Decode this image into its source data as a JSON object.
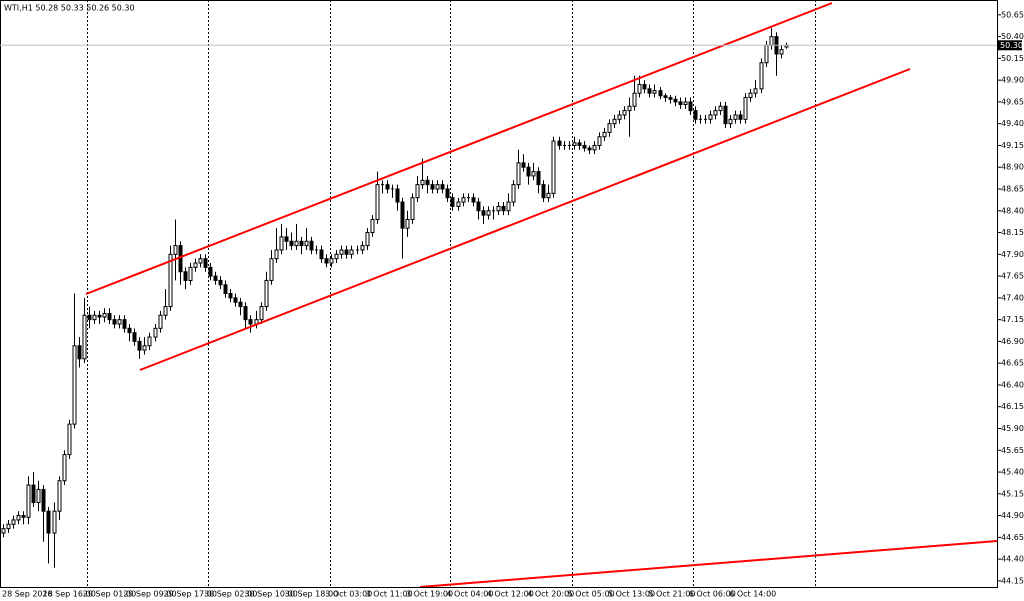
{
  "chart_data": {
    "type": "candlestick",
    "title": "WTI,H1  50.28 50.33 50.26 50.30",
    "categories": [
      "28 Sep 2016",
      null,
      null,
      null,
      null,
      null,
      null,
      null,
      "28 Sep 16:00",
      null,
      null,
      null,
      null,
      null,
      null,
      null,
      "29 Sep 01:00",
      null,
      null,
      null,
      null,
      null,
      null,
      null,
      "29 Sep 09:00",
      null,
      null,
      null,
      null,
      null,
      null,
      null,
      "29 Sep 17:00",
      null,
      null,
      null,
      null,
      null,
      null,
      null,
      "30 Sep 02:00",
      null,
      null,
      null,
      null,
      null,
      null,
      null,
      "30 Sep 10:00",
      null,
      null,
      null,
      null,
      null,
      null,
      null,
      "30 Sep 18:00",
      null,
      null,
      null,
      null,
      null,
      null,
      null,
      "3 Oct 03:00",
      null,
      null,
      null,
      null,
      null,
      null,
      null,
      "3 Oct 11:00",
      null,
      null,
      null,
      null,
      null,
      null,
      null,
      "3 Oct 19:00",
      null,
      null,
      null,
      null,
      null,
      null,
      null,
      "4 Oct 04:00",
      null,
      null,
      null,
      null,
      null,
      null,
      null,
      "4 Oct 12:00",
      null,
      null,
      null,
      null,
      null,
      null,
      null,
      "4 Oct 20:00",
      null,
      null,
      null,
      null,
      null,
      null,
      null,
      "5 Oct 05:00",
      null,
      null,
      null,
      null,
      null,
      null,
      null,
      "5 Oct 13:00",
      null,
      null,
      null,
      null,
      null,
      null,
      null,
      "5 Oct 21:00",
      null,
      null,
      null,
      null,
      null,
      null,
      null,
      "6 Oct 06:00",
      null,
      null,
      null,
      null,
      null,
      null,
      null,
      "6 Oct 14:00",
      null,
      null,
      null,
      null,
      null,
      null,
      null,
      null,
      null,
      null,
      null
    ],
    "open": [
      44.7,
      44.75,
      44.8,
      44.85,
      44.9,
      44.88,
      45.25,
      45.05,
      45.2,
      44.95,
      44.7,
      44.95,
      45.3,
      45.6,
      45.95,
      46.85,
      46.7,
      47.2,
      47.15,
      47.2,
      47.18,
      47.22,
      47.15,
      47.1,
      47.15,
      47.05,
      47.0,
      46.9,
      46.8,
      46.85,
      46.95,
      47.05,
      47.2,
      47.3,
      47.9,
      48.0,
      47.7,
      47.6,
      47.75,
      47.8,
      47.85,
      47.75,
      47.65,
      47.6,
      47.55,
      47.45,
      47.4,
      47.35,
      47.3,
      47.15,
      47.1,
      47.15,
      47.3,
      47.6,
      47.85,
      47.95,
      48.1,
      48.05,
      48.0,
      48.05,
      48.0,
      48.05,
      47.95,
      47.95,
      47.85,
      47.8,
      47.85,
      47.9,
      47.95,
      47.9,
      47.95,
      47.95,
      48.0,
      48.15,
      48.3,
      48.7,
      48.7,
      48.65,
      48.65,
      48.5,
      48.2,
      48.3,
      48.55,
      48.7,
      48.75,
      48.7,
      48.65,
      48.7,
      48.65,
      48.55,
      48.45,
      48.5,
      48.55,
      48.55,
      48.5,
      48.4,
      48.35,
      48.4,
      48.4,
      48.45,
      48.4,
      48.5,
      48.7,
      48.95,
      48.9,
      48.8,
      48.85,
      48.7,
      48.55,
      48.6,
      49.2,
      49.15,
      49.15,
      49.15,
      49.18,
      49.15,
      49.12,
      49.1,
      49.15,
      49.25,
      49.3,
      49.4,
      49.45,
      49.5,
      49.55,
      49.6,
      49.75,
      49.85,
      49.8,
      49.75,
      49.78,
      49.72,
      49.7,
      49.68,
      49.65,
      49.62,
      49.65,
      49.55,
      49.45,
      49.45,
      49.45,
      49.5,
      49.55,
      49.6,
      49.4,
      49.45,
      49.5,
      49.45,
      49.7,
      49.75,
      49.8,
      50.1,
      50.3,
      50.4,
      50.2,
      50.28
    ],
    "high": [
      44.8,
      44.85,
      44.9,
      44.95,
      44.95,
      45.35,
      45.4,
      45.3,
      45.25,
      45.0,
      45.05,
      45.35,
      45.65,
      46.0,
      47.45,
      46.95,
      47.4,
      47.3,
      47.25,
      47.25,
      47.28,
      47.28,
      47.2,
      47.2,
      47.2,
      47.1,
      47.05,
      46.95,
      46.95,
      47.0,
      47.1,
      47.25,
      47.5,
      48.0,
      48.3,
      48.05,
      47.75,
      47.8,
      47.85,
      47.9,
      47.9,
      47.8,
      47.7,
      47.65,
      47.6,
      47.5,
      47.45,
      47.4,
      47.35,
      47.2,
      47.25,
      47.35,
      47.7,
      47.95,
      48.2,
      48.25,
      48.2,
      48.15,
      48.25,
      48.1,
      48.2,
      48.1,
      48.0,
      48.0,
      47.9,
      47.9,
      47.95,
      48.0,
      48.0,
      48.0,
      48.0,
      48.05,
      48.2,
      48.35,
      48.85,
      48.75,
      48.75,
      48.7,
      48.7,
      48.55,
      48.4,
      48.6,
      48.8,
      49.0,
      48.8,
      48.75,
      48.75,
      48.75,
      48.7,
      48.6,
      48.55,
      48.6,
      48.6,
      48.6,
      48.55,
      48.45,
      48.45,
      48.45,
      48.5,
      48.5,
      48.6,
      48.75,
      49.1,
      49.05,
      48.95,
      48.95,
      48.9,
      48.75,
      48.7,
      49.25,
      49.25,
      49.2,
      49.2,
      49.25,
      49.22,
      49.2,
      49.15,
      49.2,
      49.3,
      49.35,
      49.45,
      49.5,
      49.55,
      49.6,
      49.7,
      49.95,
      49.95,
      49.9,
      49.85,
      49.85,
      49.82,
      49.75,
      49.73,
      49.72,
      49.7,
      49.7,
      49.7,
      49.6,
      49.5,
      49.5,
      49.55,
      49.6,
      49.65,
      49.65,
      49.5,
      49.55,
      49.55,
      49.75,
      49.8,
      49.9,
      50.15,
      50.35,
      50.5,
      50.45,
      50.3,
      50.33
    ],
    "low": [
      44.65,
      44.7,
      44.75,
      44.8,
      44.8,
      44.8,
      45.0,
      44.95,
      44.6,
      44.35,
      44.3,
      44.85,
      45.25,
      45.55,
      45.9,
      46.6,
      46.65,
      47.05,
      47.1,
      47.1,
      47.12,
      47.1,
      47.05,
      47.05,
      47.0,
      46.9,
      46.85,
      46.7,
      46.75,
      46.8,
      46.9,
      47.0,
      47.15,
      47.25,
      47.6,
      47.55,
      47.5,
      47.55,
      47.7,
      47.75,
      47.7,
      47.6,
      47.55,
      47.5,
      47.4,
      47.35,
      47.3,
      47.2,
      47.05,
      47.0,
      47.05,
      47.1,
      47.25,
      47.55,
      47.8,
      47.9,
      47.95,
      47.95,
      47.95,
      47.9,
      47.95,
      47.9,
      47.9,
      47.8,
      47.75,
      47.75,
      47.8,
      47.85,
      47.85,
      47.85,
      47.9,
      47.9,
      47.95,
      48.1,
      48.25,
      48.6,
      48.6,
      48.55,
      48.4,
      47.85,
      48.1,
      48.25,
      48.5,
      48.65,
      48.6,
      48.6,
      48.6,
      48.6,
      48.5,
      48.4,
      48.4,
      48.45,
      48.5,
      48.45,
      48.3,
      48.25,
      48.3,
      48.3,
      48.35,
      48.35,
      48.35,
      48.45,
      48.65,
      48.85,
      48.7,
      48.75,
      48.6,
      48.5,
      48.5,
      48.55,
      49.1,
      49.1,
      49.1,
      49.1,
      49.1,
      49.08,
      49.05,
      49.05,
      49.1,
      49.2,
      49.25,
      49.35,
      49.4,
      49.45,
      49.25,
      49.55,
      49.7,
      49.75,
      49.7,
      49.7,
      49.68,
      49.65,
      49.63,
      49.6,
      49.57,
      49.57,
      49.5,
      49.4,
      49.4,
      49.4,
      49.4,
      49.45,
      49.5,
      49.35,
      49.35,
      49.4,
      49.4,
      49.4,
      49.65,
      49.7,
      49.75,
      50.05,
      50.25,
      49.95,
      50.15,
      50.26
    ],
    "close": [
      44.75,
      44.8,
      44.85,
      44.9,
      44.88,
      45.25,
      45.05,
      45.2,
      44.95,
      44.7,
      44.95,
      45.3,
      45.6,
      45.95,
      46.85,
      46.7,
      47.2,
      47.15,
      47.2,
      47.18,
      47.22,
      47.15,
      47.1,
      47.15,
      47.05,
      47.0,
      46.9,
      46.8,
      46.85,
      46.95,
      47.05,
      47.2,
      47.3,
      47.9,
      48.0,
      47.7,
      47.6,
      47.75,
      47.8,
      47.85,
      47.75,
      47.65,
      47.6,
      47.55,
      47.45,
      47.4,
      47.35,
      47.3,
      47.15,
      47.1,
      47.15,
      47.3,
      47.6,
      47.85,
      47.95,
      48.1,
      48.05,
      48.0,
      48.05,
      48.0,
      48.05,
      47.95,
      47.95,
      47.85,
      47.8,
      47.85,
      47.9,
      47.95,
      47.9,
      47.95,
      47.95,
      48.0,
      48.15,
      48.3,
      48.7,
      48.7,
      48.65,
      48.65,
      48.5,
      48.2,
      48.3,
      48.55,
      48.7,
      48.75,
      48.7,
      48.65,
      48.7,
      48.65,
      48.55,
      48.45,
      48.5,
      48.55,
      48.55,
      48.5,
      48.4,
      48.35,
      48.4,
      48.4,
      48.45,
      48.4,
      48.5,
      48.7,
      48.95,
      48.9,
      48.8,
      48.85,
      48.7,
      48.55,
      48.6,
      49.2,
      49.15,
      49.15,
      49.15,
      49.18,
      49.15,
      49.12,
      49.1,
      49.15,
      49.25,
      49.3,
      49.4,
      49.45,
      49.5,
      49.55,
      49.6,
      49.75,
      49.85,
      49.8,
      49.75,
      49.78,
      49.72,
      49.7,
      49.68,
      49.65,
      49.62,
      49.65,
      49.55,
      49.45,
      49.45,
      49.45,
      49.5,
      49.55,
      49.6,
      49.4,
      49.45,
      49.5,
      49.45,
      49.7,
      49.75,
      49.8,
      50.1,
      50.3,
      50.4,
      50.2,
      50.25,
      50.3
    ],
    "bid": {
      "value": 50.3,
      "label": "50.30"
    },
    "ylim": [
      44.08,
      50.82
    ],
    "yticks": [
      50.65,
      {
        "value": 50.4,
        "label": "50.40"
      },
      50.15,
      {
        "value": 49.9,
        "label": "49.90"
      },
      49.65,
      {
        "value": 49.4,
        "label": "49.40"
      },
      49.15,
      {
        "value": 48.9,
        "label": "48.90"
      },
      48.65,
      {
        "value": 48.4,
        "label": "48.40"
      },
      48.15,
      {
        "value": 47.9,
        "label": "47.90"
      },
      47.65,
      {
        "value": 47.4,
        "label": "47.40"
      },
      47.15,
      {
        "value": 46.9,
        "label": "46.90"
      },
      46.65,
      {
        "value": 46.4,
        "label": "46.40"
      },
      46.15,
      {
        "value": 45.9,
        "label": "45.90"
      },
      45.65,
      {
        "value": 45.4,
        "label": "45.40"
      },
      45.15,
      {
        "value": 44.9,
        "label": "44.90"
      },
      44.65,
      {
        "value": 44.4,
        "label": "44.40"
      },
      44.15
    ],
    "up_color": "#ffffff",
    "down_color": "#000000",
    "grid": false
  }
}
